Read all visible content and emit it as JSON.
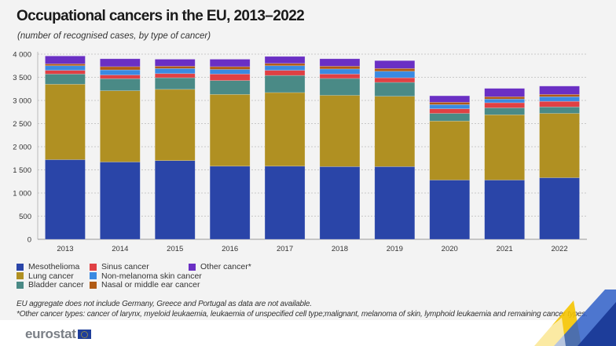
{
  "title": "Occupational cancers in the EU, 2013–2022",
  "subtitle": "(number of recognised cases, by type of cancer)",
  "notes": [
    "EU aggregate does not include Germany, Greece and Portugal as data are not available.",
    "*Other cancer types: cancer of larynx, myeloid leukaemia, leukaemia of unspecified cell type;malignant, melanoma of skin, lymphoid leukaemia and remaining cancer types."
  ],
  "logo": "eurostat",
  "chart_data": {
    "type": "bar",
    "stacked": true,
    "categories": [
      "2013",
      "2014",
      "2015",
      "2016",
      "2017",
      "2018",
      "2019",
      "2020",
      "2021",
      "2022"
    ],
    "ylim": [
      0,
      4000
    ],
    "yticks": [
      0,
      500,
      1000,
      1500,
      2000,
      2500,
      3000,
      3500,
      4000
    ],
    "ytick_labels": [
      "0",
      "500",
      "1 000",
      "1 500",
      "2 000",
      "2 500",
      "3 000",
      "3 500",
      "4 000"
    ],
    "grid": true,
    "legend_placement": "bottom",
    "series": [
      {
        "name": "Mesothelioma",
        "color": "#2a45a8",
        "values": [
          1720,
          1670,
          1700,
          1580,
          1580,
          1570,
          1570,
          1280,
          1280,
          1330
        ]
      },
      {
        "name": "Lung cancer",
        "color": "#b09022",
        "values": [
          1630,
          1540,
          1540,
          1550,
          1590,
          1540,
          1520,
          1275,
          1410,
          1390
        ]
      },
      {
        "name": "Bladder cancer",
        "color": "#4a8a86",
        "values": [
          220,
          260,
          250,
          300,
          370,
          365,
          300,
          165,
          150,
          140
        ]
      },
      {
        "name": "Sinus cancer",
        "color": "#e04044",
        "values": [
          80,
          80,
          90,
          140,
          110,
          95,
          100,
          100,
          110,
          120
        ]
      },
      {
        "name": "Non-melanoma skin cancer",
        "color": "#3a8ae2",
        "values": [
          100,
          110,
          110,
          100,
          100,
          110,
          140,
          90,
          80,
          100
        ]
      },
      {
        "name": "Nasal or middle ear cancer",
        "color": "#b05a14",
        "values": [
          40,
          70,
          50,
          60,
          50,
          60,
          60,
          50,
          50,
          50
        ]
      },
      {
        "name": "Other cancer*",
        "color": "#6a2fc4",
        "values": [
          170,
          170,
          150,
          160,
          150,
          160,
          170,
          140,
          180,
          180
        ]
      }
    ]
  }
}
